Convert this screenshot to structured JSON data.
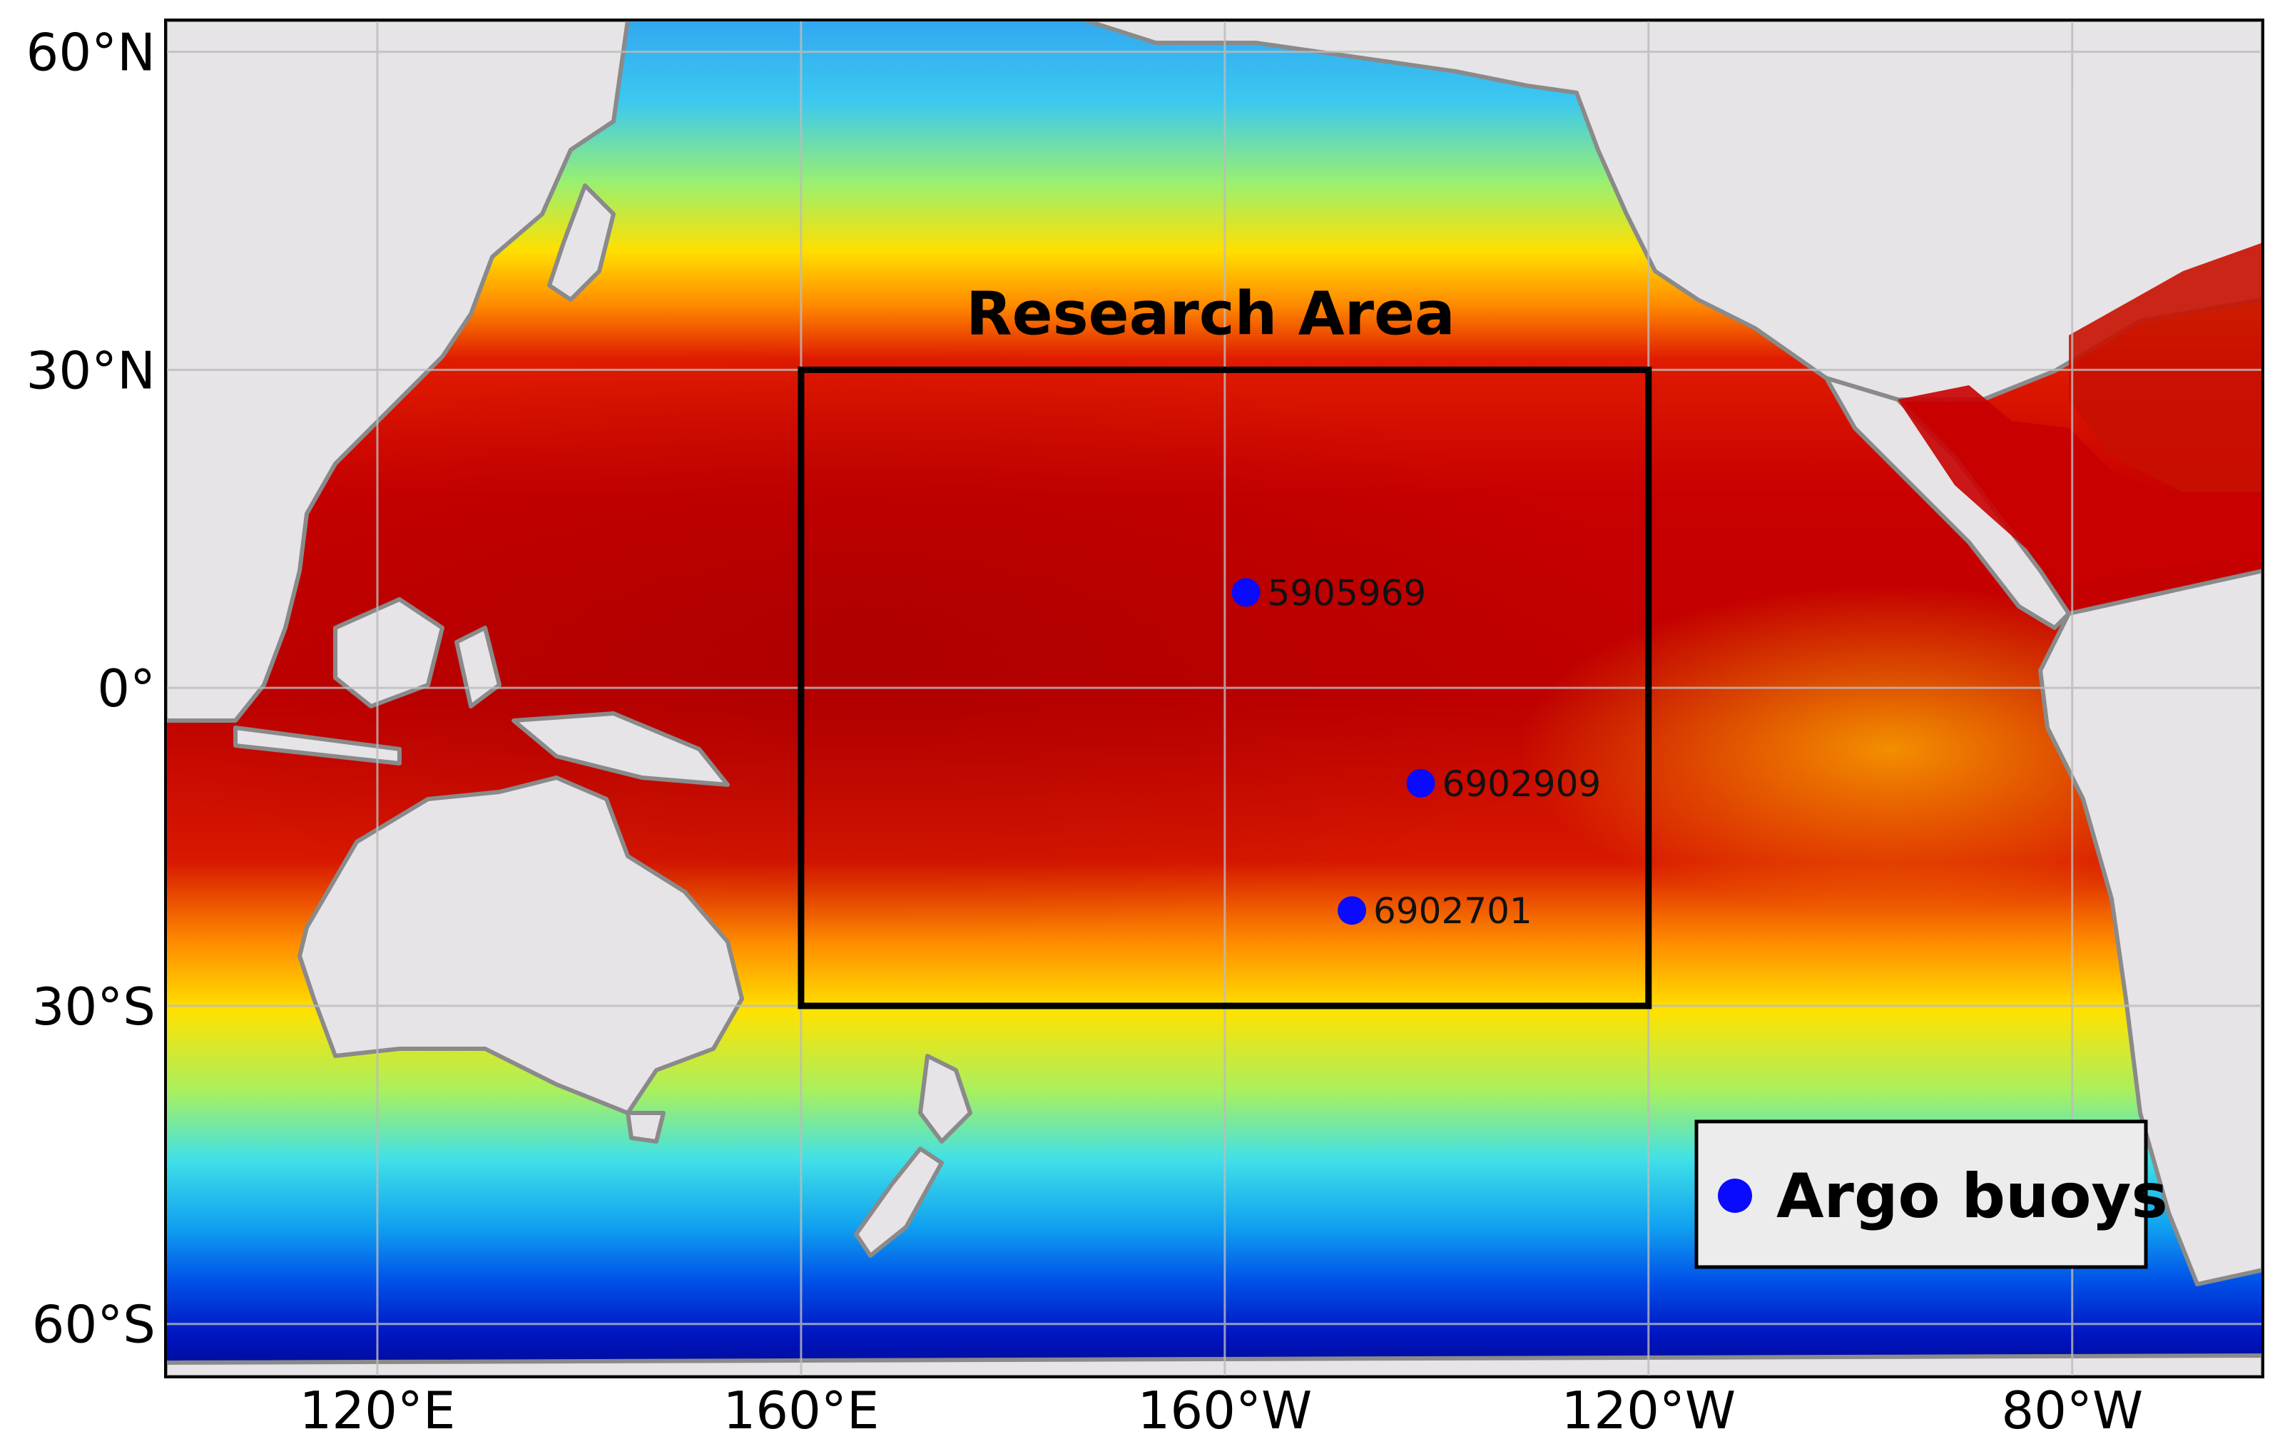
{
  "map": {
    "research_area_label": "Research Area",
    "x_ticks": [
      "120°E",
      "160°E",
      "160°W",
      "120°W",
      "80°W"
    ],
    "y_ticks": [
      "60°N",
      "30°N",
      "0°",
      "30°S",
      "60°S"
    ],
    "lon_ticks": [
      120,
      160,
      200,
      240,
      280
    ],
    "lat_ticks": [
      60,
      30,
      0,
      -30,
      -60
    ],
    "lon_range": [
      100,
      298
    ],
    "lat_range": [
      -65,
      63
    ],
    "research_area": {
      "lon_min": 160,
      "lon_max": 240,
      "lat_min": -30,
      "lat_max": 30
    },
    "buoys": [
      {
        "id": "5905969",
        "lon": 202,
        "lat": 9
      },
      {
        "id": "6902909",
        "lon": 218.5,
        "lat": -9
      },
      {
        "id": "6902701",
        "lon": 212,
        "lat": -21
      }
    ],
    "legend": {
      "label": "Argo buoys",
      "position": "bottom-right"
    },
    "colors": {
      "buoy": "#0a0aff",
      "land": "#e6e4e6",
      "coast": "#8a8a8a",
      "frame": "#000000",
      "warm": "#c40000",
      "cold": "#0018c0"
    }
  }
}
